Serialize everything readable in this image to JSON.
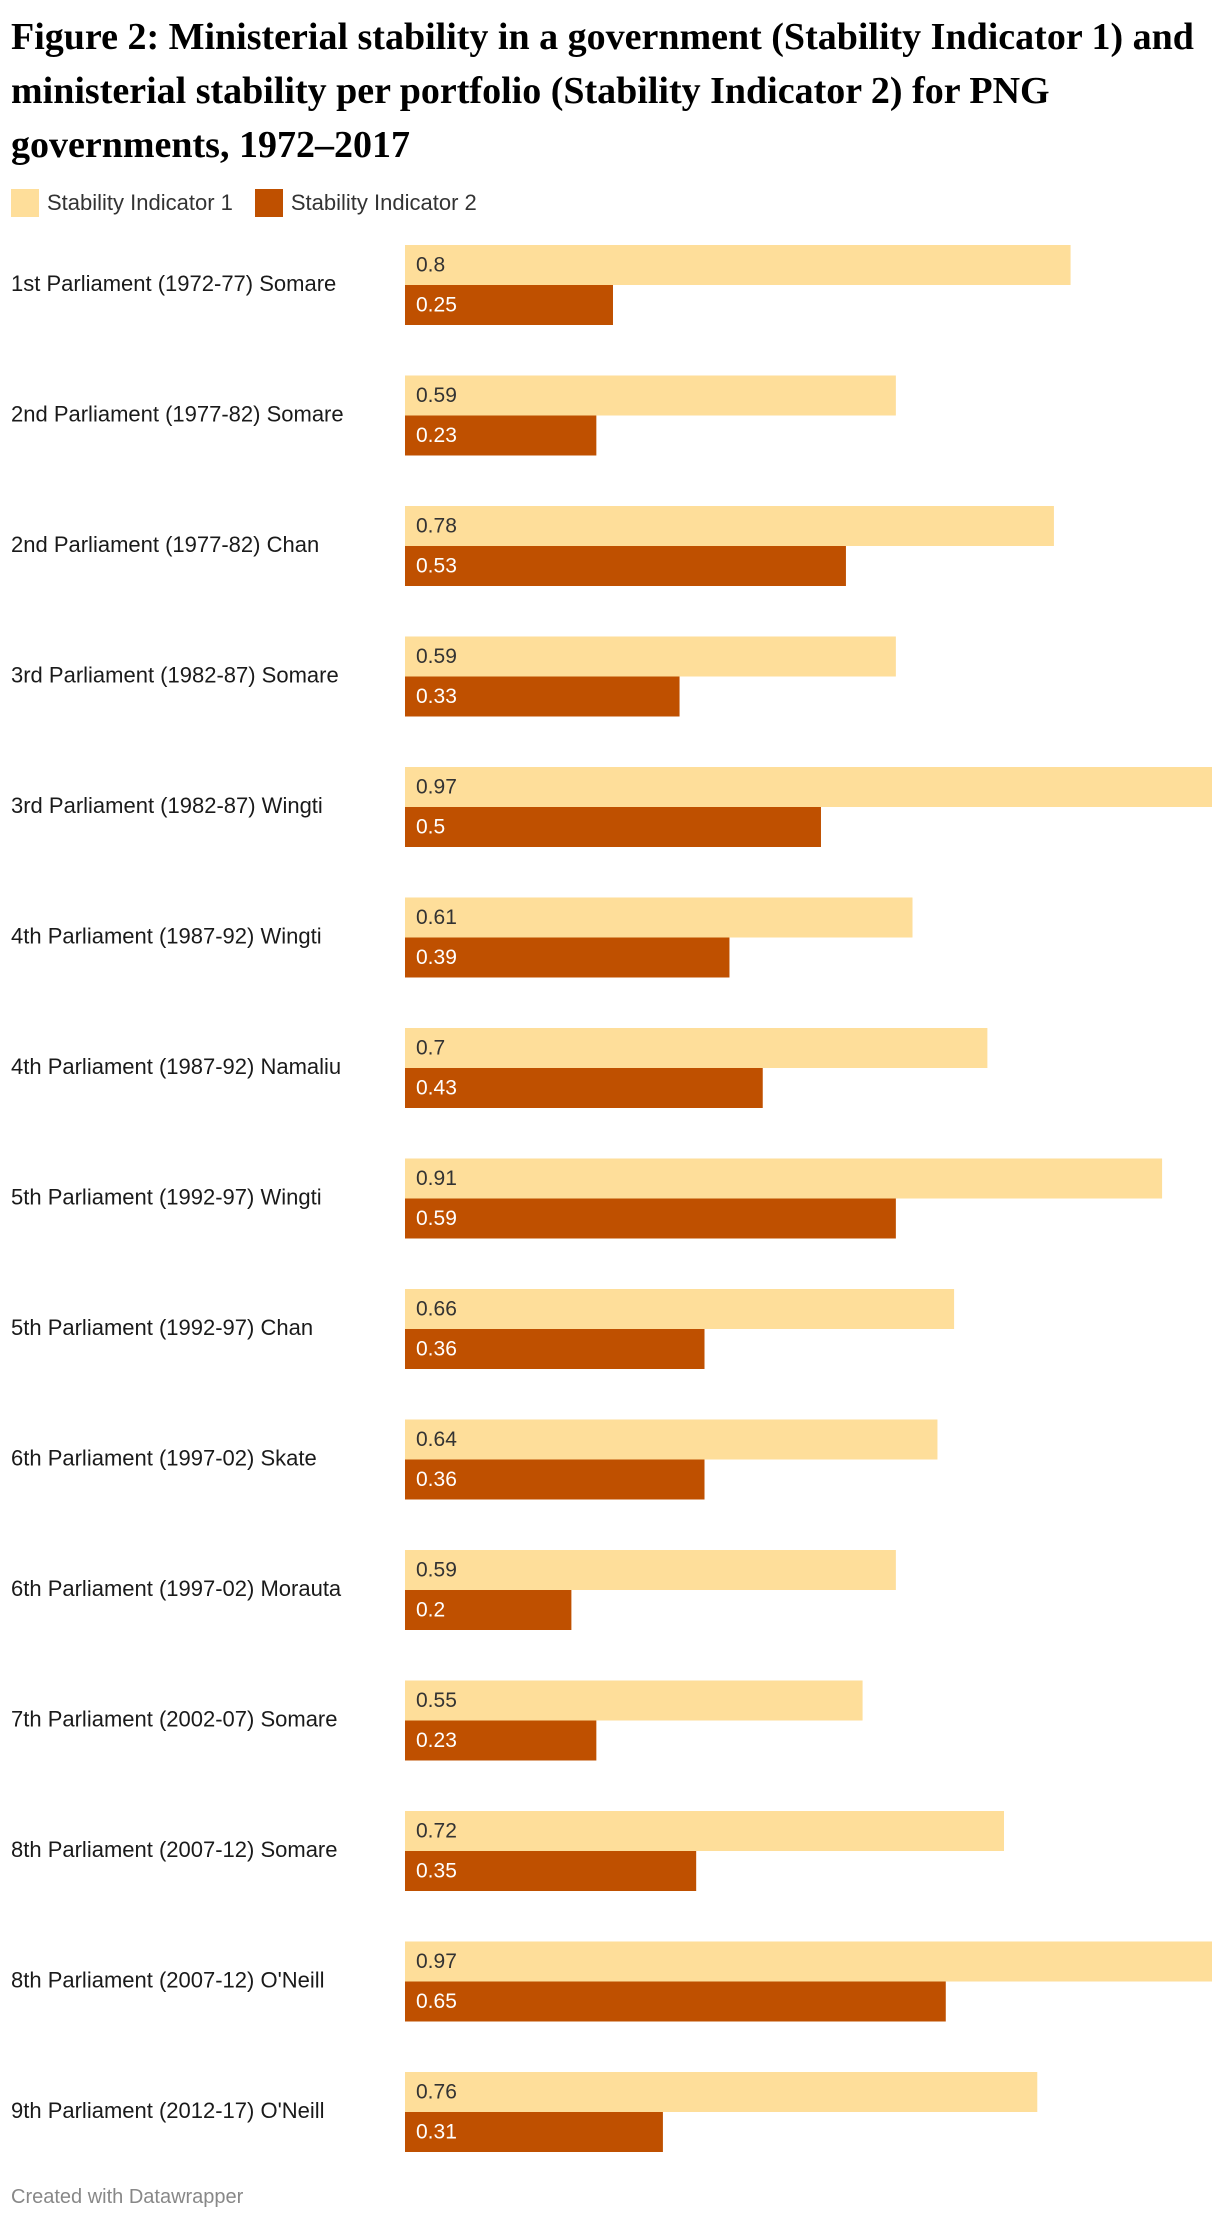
{
  "chart_data": {
    "type": "bar",
    "orientation": "horizontal",
    "title": "Figure 2: Ministerial stability in a government (Stability Indicator 1) and ministerial stability per portfolio (Stability Indicator 2) for PNG governments, 1972–2017",
    "legend_position": "top-left",
    "categories": [
      "1st Parliament (1972-77) Somare",
      "2nd Parliament (1977-82) Somare",
      "2nd Parliament (1977-82) Chan",
      "3rd Parliament (1982-87) Somare",
      "3rd Parliament (1982-87) Wingti",
      "4th Parliament (1987-92) Wingti",
      "4th Parliament (1987-92) Namaliu",
      "5th Parliament (1992-97) Wingti",
      "5th Parliament (1992-97) Chan",
      "6th Parliament (1997-02) Skate",
      "6th Parliament (1997-02) Morauta",
      "7th Parliament (2002-07) Somare",
      "8th Parliament (2007-12) Somare",
      "8th Parliament (2007-12) O'Neill",
      "9th Parliament (2012-17) O'Neill"
    ],
    "series": [
      {
        "name": "Stability Indicator 1",
        "color": "#fede9a",
        "values": [
          0.8,
          0.59,
          0.78,
          0.59,
          0.97,
          0.61,
          0.7,
          0.91,
          0.66,
          0.64,
          0.59,
          0.55,
          0.72,
          0.97,
          0.76
        ]
      },
      {
        "name": "Stability Indicator 2",
        "color": "#bf5000",
        "values": [
          0.25,
          0.23,
          0.53,
          0.33,
          0.5,
          0.39,
          0.43,
          0.59,
          0.36,
          0.36,
          0.2,
          0.23,
          0.35,
          0.65,
          0.31
        ]
      }
    ],
    "xlim": [
      0,
      0.97
    ],
    "grid": false
  },
  "footer": {
    "credit": "Created with Datawrapper"
  }
}
